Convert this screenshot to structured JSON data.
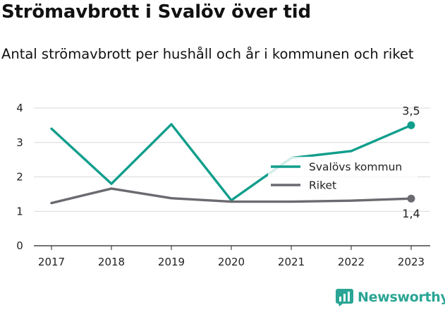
{
  "title": "Strömavbrott i Svalöv över tid",
  "subtitle": "Antal strömavbrott per hushåll och år i kommunen och riket",
  "brand": {
    "name": "Newsworthy",
    "icon": "newsworthy-logo-icon"
  },
  "chart_data": {
    "type": "line",
    "x": [
      "2017",
      "2018",
      "2019",
      "2020",
      "2021",
      "2022",
      "2023"
    ],
    "ylim": [
      0,
      4
    ],
    "yticks": [
      "0",
      "1",
      "2",
      "3",
      "4"
    ],
    "grid": true,
    "legend": "right",
    "series": [
      {
        "name": "Svalövs kommun",
        "color": "#109e8c",
        "values": [
          3.4,
          1.8,
          3.53,
          1.32,
          2.55,
          2.75,
          3.5
        ],
        "end_label": "3,5"
      },
      {
        "name": "Riket",
        "color": "#6b6a70",
        "values": [
          1.24,
          1.66,
          1.38,
          1.28,
          1.28,
          1.31,
          1.37
        ],
        "end_label": "1,4"
      }
    ]
  }
}
